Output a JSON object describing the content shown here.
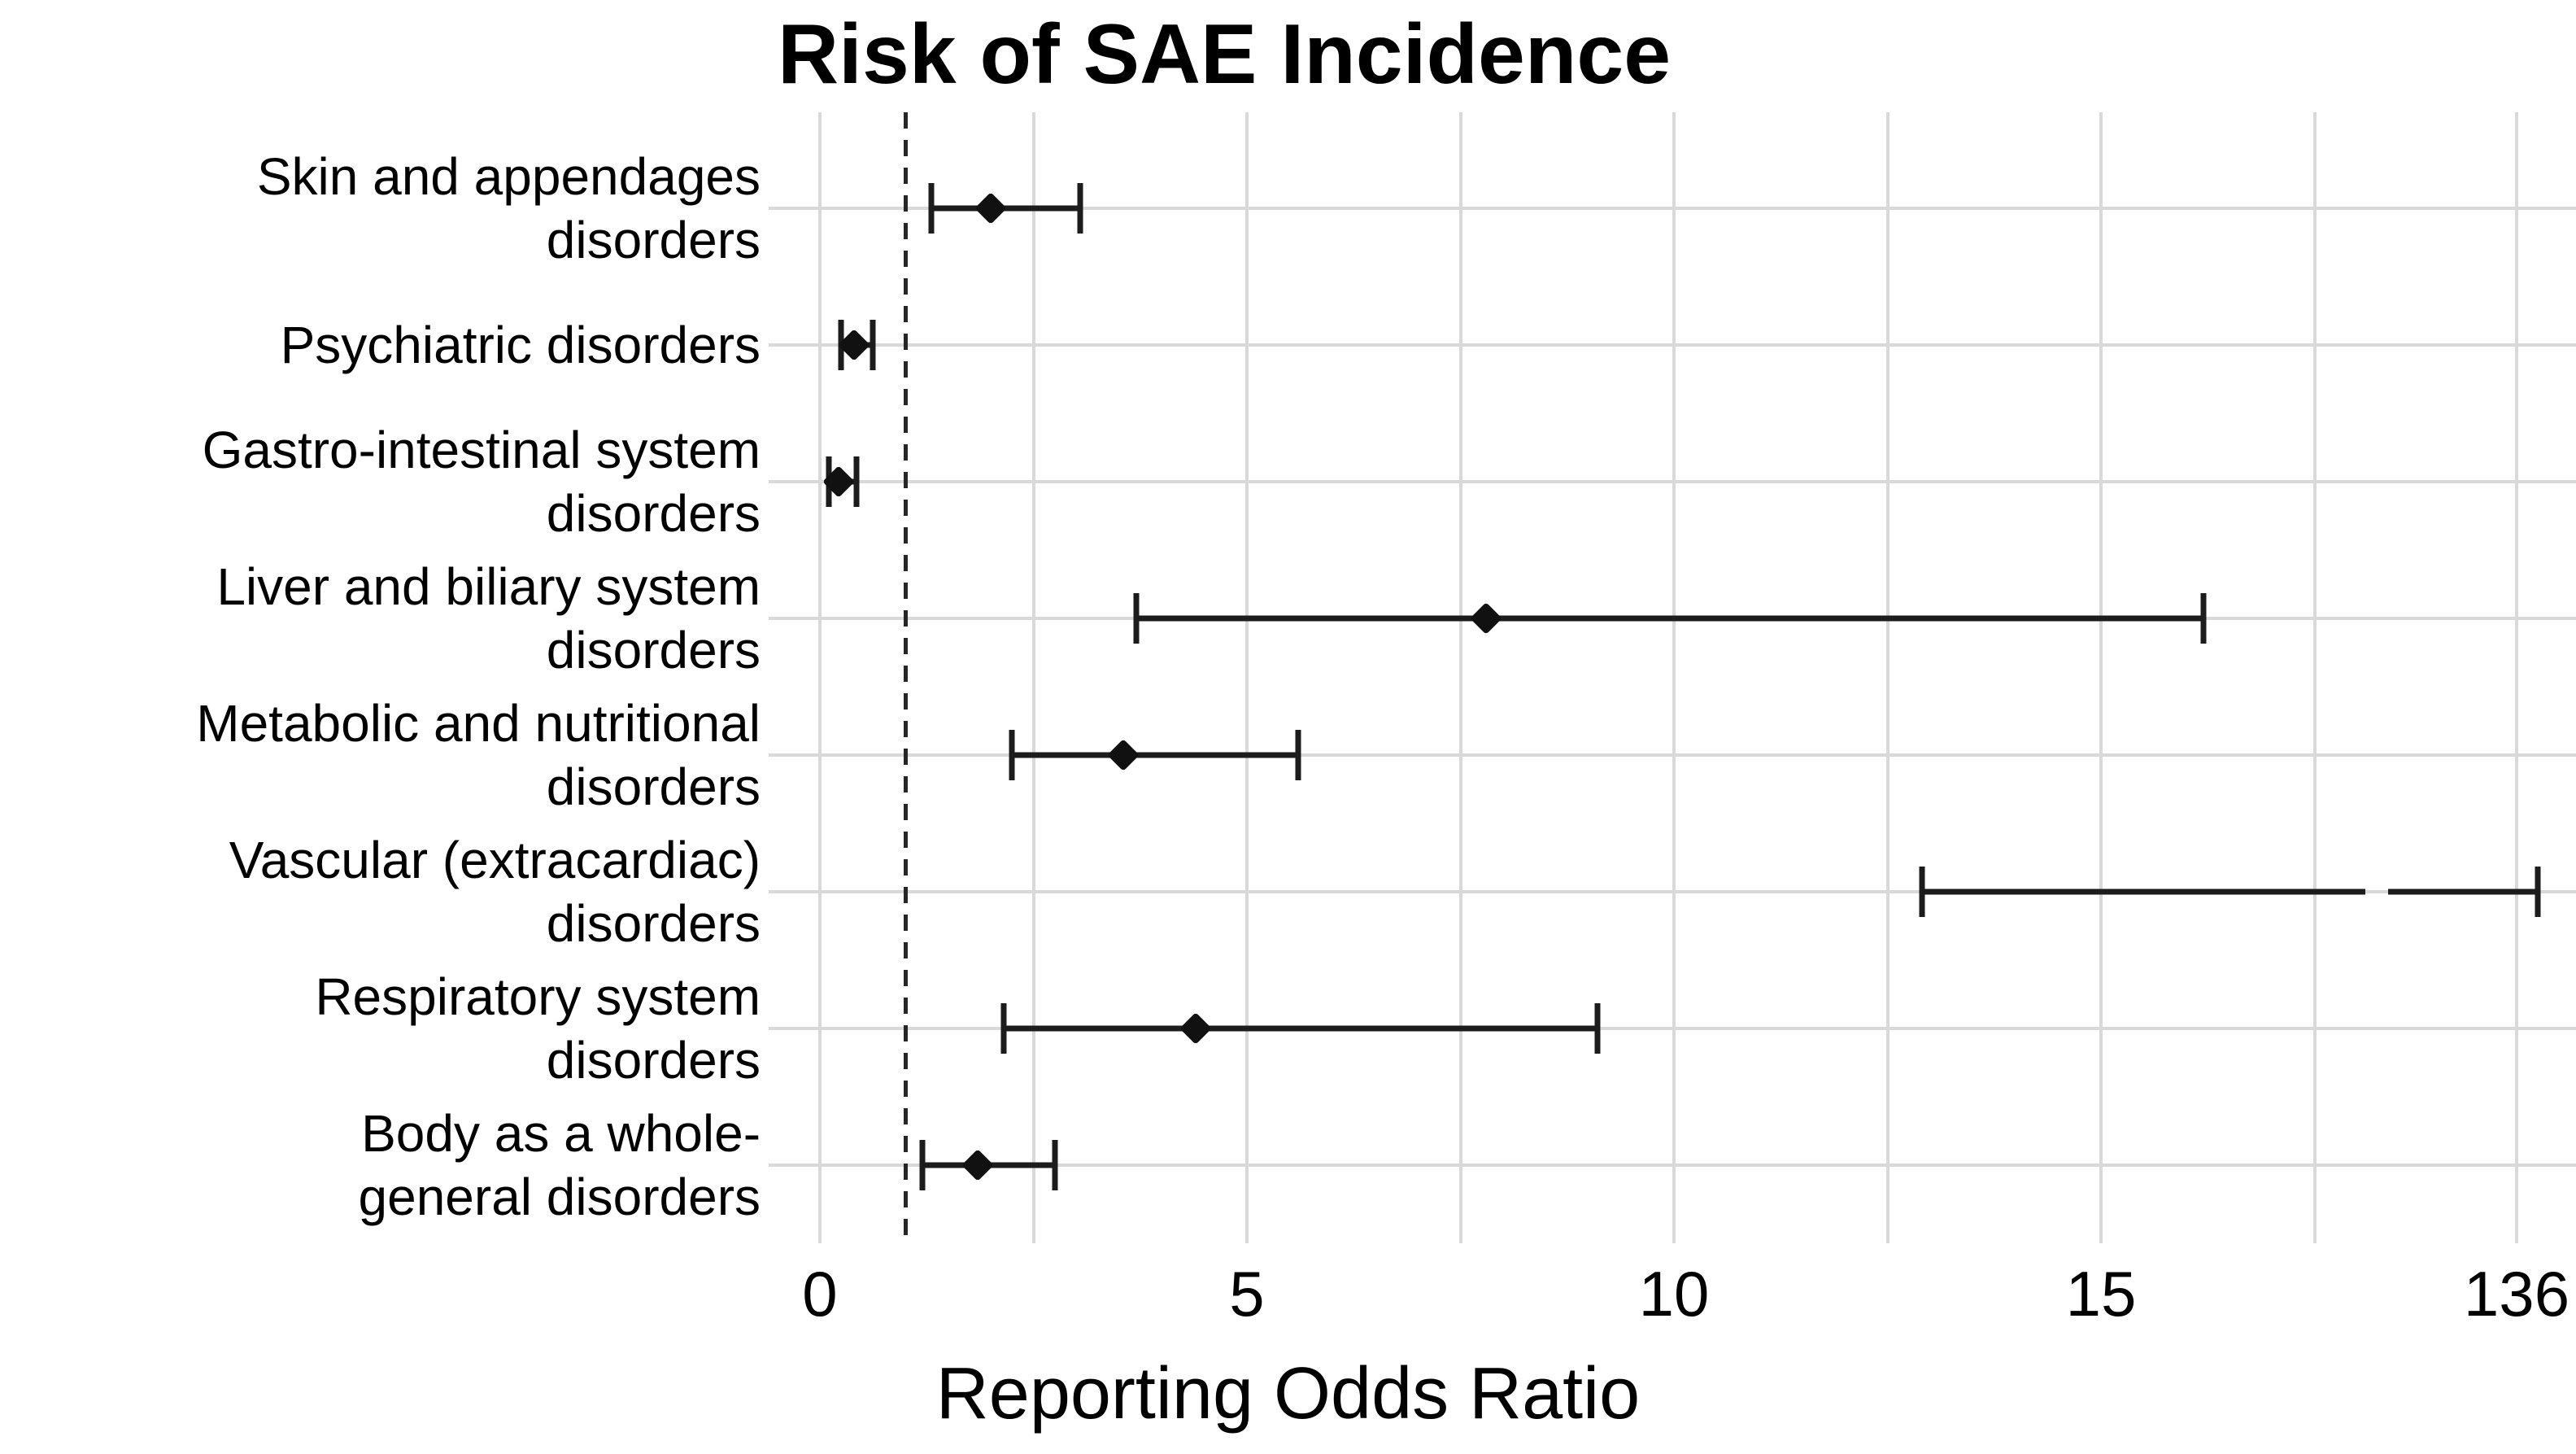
{
  "chart_data": {
    "type": "scatter",
    "subtype": "forest-plot",
    "title": "Risk of SAE Incidence",
    "xlabel": "Reporting Odds Ratio",
    "background": "#ffffff",
    "grid": "on",
    "gridline_color": "#d9d9d9",
    "marker_color": "#111111",
    "reference_line": {
      "x": 1,
      "style": "dashed",
      "color": "#262626"
    },
    "x_ticks": [
      {
        "label": "0",
        "value": 0
      },
      {
        "label": "5",
        "value": 5
      },
      {
        "label": "10",
        "value": 10
      },
      {
        "label": "15",
        "value": 15
      },
      {
        "label": "136",
        "value": 136
      }
    ],
    "x_axis_note": "axis linear from 0 to ~17.5 then broken/compressed; rightmost tick labeled 136",
    "categories": [
      {
        "label": "Skin and appendages disorders",
        "label_lines": [
          "Skin and appendages",
          "disorders"
        ]
      },
      {
        "label": "Psychiatric disorders",
        "label_lines": [
          "Psychiatric disorders"
        ]
      },
      {
        "label": "Gastro-intestinal system disorders",
        "label_lines": [
          "Gastro-intestinal system",
          "disorders"
        ]
      },
      {
        "label": "Liver and biliary system disorders",
        "label_lines": [
          "Liver and biliary system",
          "disorders"
        ]
      },
      {
        "label": "Metabolic and nutritional disorders",
        "label_lines": [
          "Metabolic and nutritional",
          "disorders"
        ]
      },
      {
        "label": "Vascular (extracardiac) disorders",
        "label_lines": [
          "Vascular (extracardiac)",
          "disorders"
        ]
      },
      {
        "label": "Respiratory system disorders",
        "label_lines": [
          "Respiratory system",
          "disorders"
        ]
      },
      {
        "label": "Body as a whole- general disorders",
        "label_lines": [
          "Body as a whole-",
          "general disorders"
        ]
      }
    ],
    "series": [
      {
        "category": "Skin and appendages disorders",
        "or": 2.0,
        "ci_low": 1.3,
        "ci_high": 3.05,
        "marker_visible": true,
        "broken_ci": false
      },
      {
        "category": "Psychiatric disorders",
        "or": 0.4,
        "ci_low": 0.25,
        "ci_high": 0.62,
        "marker_visible": true,
        "broken_ci": false
      },
      {
        "category": "Gastro-intestinal system disorders",
        "or": 0.22,
        "ci_low": 0.1,
        "ci_high": 0.43,
        "marker_visible": true,
        "broken_ci": false
      },
      {
        "category": "Liver and biliary system disorders",
        "or": 7.8,
        "ci_low": 3.7,
        "ci_high": 16.2,
        "marker_visible": true,
        "broken_ci": false
      },
      {
        "category": "Metabolic and nutritional disorders",
        "or": 3.55,
        "ci_low": 2.25,
        "ci_high": 5.6,
        "marker_visible": true,
        "broken_ci": false
      },
      {
        "category": "Vascular (extracardiac) disorders",
        "or": null,
        "ci_low": 12.9,
        "ci_high": 136,
        "marker_visible": false,
        "broken_ci": true
      },
      {
        "category": "Respiratory system disorders",
        "or": 4.4,
        "ci_low": 2.15,
        "ci_high": 9.1,
        "marker_visible": true,
        "broken_ci": false
      },
      {
        "category": "Body as a whole- general disorders",
        "or": 1.85,
        "ci_low": 1.2,
        "ci_high": 2.75,
        "marker_visible": true,
        "broken_ci": false
      }
    ]
  }
}
